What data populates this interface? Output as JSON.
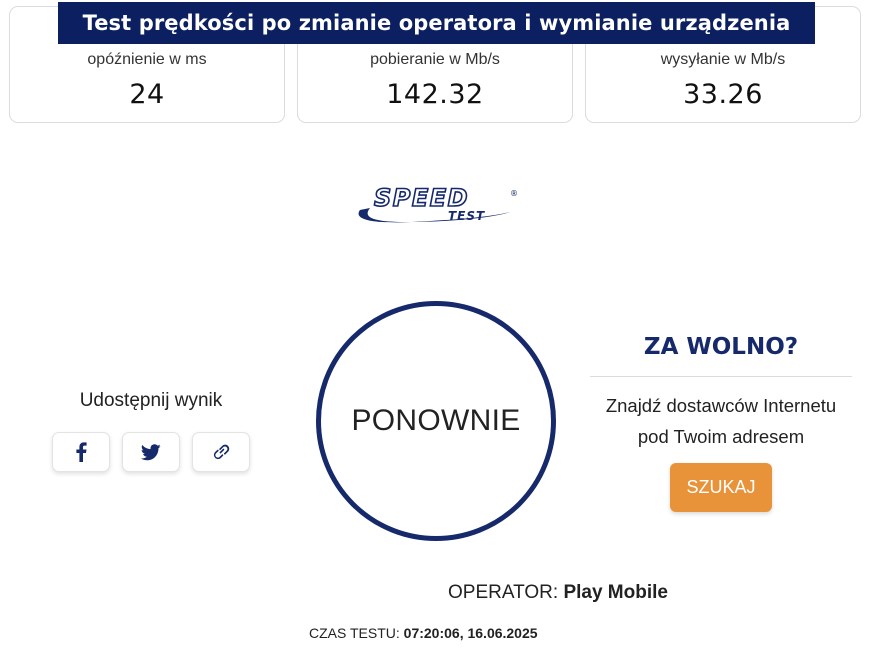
{
  "title": "Test prędkości po zmianie operatora i wymianie urządzenia",
  "metrics": [
    {
      "label": "opóźnienie w ms",
      "value": "24"
    },
    {
      "label": "pobieranie w Mb/s",
      "value": "142.32"
    },
    {
      "label": "wysyłanie w Mb/s",
      "value": "33.26"
    }
  ],
  "logo": {
    "text": "SPEED",
    "subtext": "TEST",
    "mark": "®",
    "color": "#15296b"
  },
  "share": {
    "label": "Udostępnij wynik",
    "buttons": [
      {
        "icon": "facebook-icon"
      },
      {
        "icon": "twitter-icon"
      },
      {
        "icon": "link-icon"
      }
    ]
  },
  "again_button": {
    "label": "PONOWNIE"
  },
  "too_slow": {
    "heading": "ZA WOLNO?",
    "text_line1": "Znajdź dostawców Internetu",
    "text_line2": "pod Twoim adresem",
    "button_label": "SZUKAJ"
  },
  "operator": {
    "label": "OPERATOR:",
    "name": "Play Mobile"
  },
  "test_time": {
    "label": "CZAS TESTU:",
    "value": "07:20:06, 16.06.2025"
  },
  "colors": {
    "brand_navy": "#15296b",
    "title_bg": "#0b1f61",
    "accent_orange": "#e8923a"
  }
}
